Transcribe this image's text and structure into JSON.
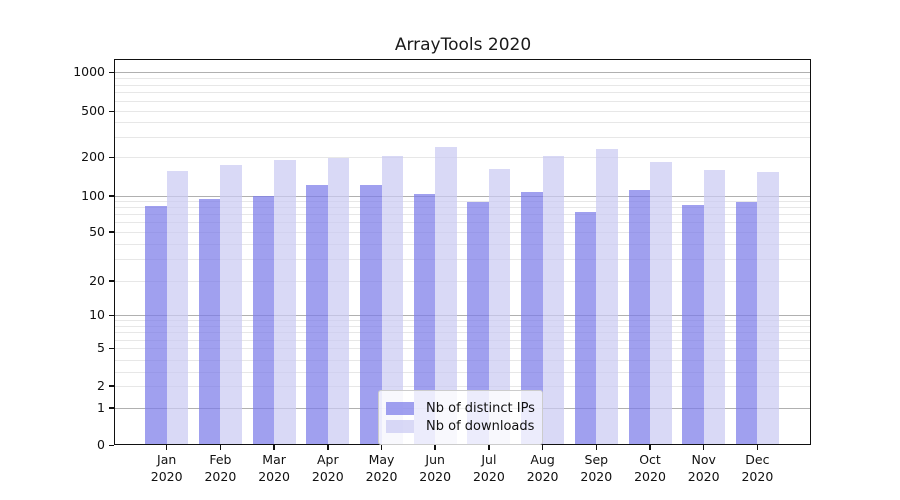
{
  "title": "ArrayTools 2020",
  "chart_data": {
    "type": "bar",
    "title": "ArrayTools 2020",
    "categories": [
      "Jan",
      "Feb",
      "Mar",
      "Apr",
      "May",
      "Jun",
      "Jul",
      "Aug",
      "Sep",
      "Oct",
      "Nov",
      "Dec"
    ],
    "x_tick_year": "2020",
    "series": [
      {
        "name": "Nb of distinct IPs",
        "color": "rgba(123,123,233,0.72)",
        "color_hex_on_white": "#a0a0ef",
        "values": [
          82,
          94,
          100,
          120,
          120,
          102,
          88,
          107,
          73,
          110,
          84,
          89
        ]
      },
      {
        "name": "Nb of downloads",
        "color": "rgba(203,203,242,0.72)",
        "color_hex_on_white": "#d9d9f5",
        "values": [
          156,
          174,
          192,
          199,
          206,
          243,
          162,
          206,
          236,
          184,
          159,
          152
        ]
      }
    ],
    "yscale": "symlog",
    "y_ticks": [
      0,
      1,
      2,
      5,
      10,
      20,
      50,
      100,
      200,
      500,
      1000
    ],
    "ylim": [
      0,
      1400
    ],
    "xlabel": "",
    "ylabel": "",
    "grid": "on",
    "legend_position": "lower-center-inside"
  },
  "legend": {
    "items": [
      {
        "label": "Nb of distinct IPs"
      },
      {
        "label": "Nb of downloads"
      }
    ]
  }
}
